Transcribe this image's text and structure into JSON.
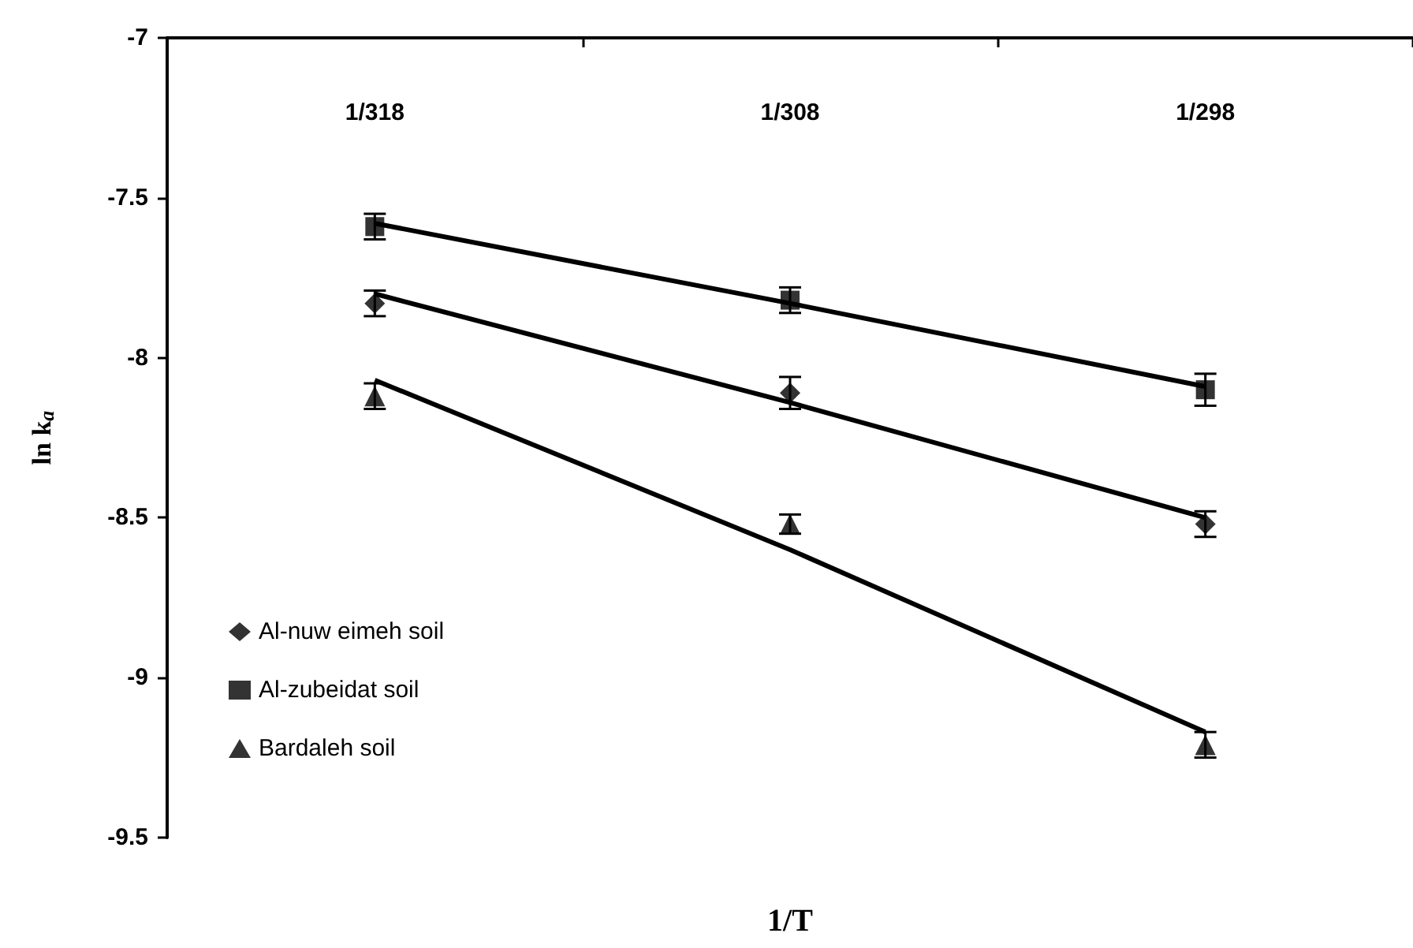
{
  "chart_data": {
    "type": "scatter",
    "xlabel": "1/T",
    "ylabel": "ln k$_{a}$",
    "categories": [
      "1/318",
      "1/308",
      "1/298"
    ],
    "ylim": [
      -9.5,
      -7
    ],
    "yticks": [
      -9.5,
      -9,
      -8.5,
      -8,
      -7.5,
      -7
    ],
    "grid": false,
    "legend": "bottom left",
    "series": [
      {
        "name": "Al-nuw eimeh soil",
        "color": "#000000",
        "marker": "diamond",
        "values": [
          -7.83,
          -8.11,
          -8.52
        ],
        "errors": [
          0.04,
          0.05,
          0.04
        ]
      },
      {
        "name": "Al-zubeidat soil",
        "color": "#000000",
        "marker": "square",
        "values": [
          -7.59,
          -7.82,
          -8.1
        ],
        "errors": [
          0.04,
          0.04,
          0.05
        ]
      },
      {
        "name": "Bardaleh soil",
        "color": "#000000",
        "marker": "triangle",
        "values": [
          -8.12,
          -8.52,
          -9.21
        ],
        "errors": [
          0.04,
          0.03,
          0.04
        ]
      },
      {
        "type": "line",
        "color": "#000000",
        "marker": "none",
        "values": [
          -7.8,
          -8.14,
          -8.5
        ]
      },
      {
        "type": "line",
        "color": "#000000",
        "marker": "none",
        "values": [
          -7.58,
          -7.83,
          -8.09
        ]
      },
      {
        "type": "line",
        "color": "#000000",
        "marker": "none",
        "values": [
          -8.07,
          -8.6,
          -9.17
        ]
      }
    ]
  }
}
